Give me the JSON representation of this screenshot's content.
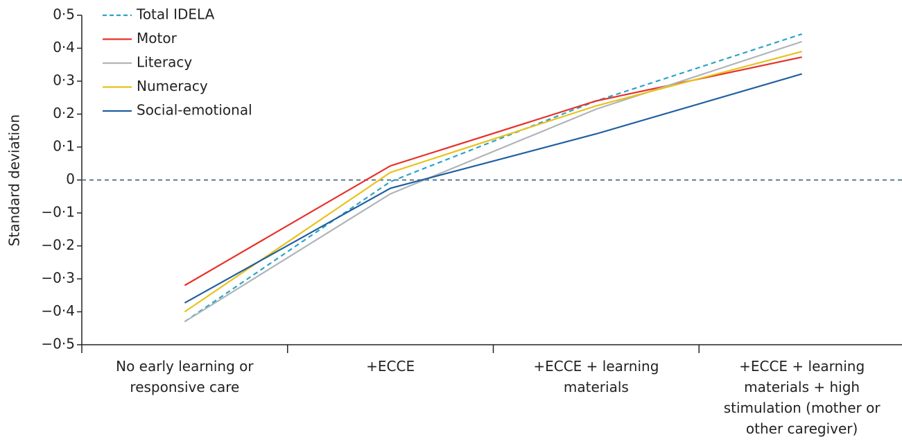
{
  "chart_data": {
    "type": "line",
    "y_label": "Standard deviation",
    "categories": [
      "No early learning or responsive care",
      "+ECCE",
      "+ECCE + learning materials",
      "+ECCE + learning materials + high stimulation (mother or other caregiver)"
    ],
    "series": [
      {
        "name": "Total IDELA",
        "color": "#2aa3c9",
        "dashed": true,
        "values": [
          -0.43,
          -0.005,
          0.24,
          0.443
        ]
      },
      {
        "name": "Motor",
        "color": "#e8302a",
        "dashed": false,
        "values": [
          -0.32,
          0.043,
          0.24,
          0.373
        ]
      },
      {
        "name": "Literacy",
        "color": "#b0b4b8",
        "dashed": false,
        "values": [
          -0.43,
          -0.042,
          0.215,
          0.42
        ]
      },
      {
        "name": "Numeracy",
        "color": "#e8c21a",
        "dashed": false,
        "values": [
          -0.4,
          0.023,
          0.225,
          0.39
        ]
      },
      {
        "name": "Social-emotional",
        "color": "#1f5fa0",
        "dashed": false,
        "values": [
          -0.373,
          -0.025,
          0.14,
          0.322
        ]
      }
    ],
    "ylim": [
      -0.5,
      0.5
    ],
    "yticks": [
      {
        "value": -0.5,
        "label": "−0·5"
      },
      {
        "value": -0.4,
        "label": "−0·4"
      },
      {
        "value": -0.3,
        "label": "−0·3"
      },
      {
        "value": -0.2,
        "label": "−0·2"
      },
      {
        "value": -0.1,
        "label": "−0·1"
      },
      0,
      {
        "value": 0.1,
        "label": "0·1"
      },
      {
        "value": 0.2,
        "label": "0·2"
      },
      {
        "value": 0.3,
        "label": "0·3"
      },
      {
        "value": 0.4,
        "label": "0·4"
      },
      {
        "value": 0.5,
        "label": "0·5"
      }
    ],
    "reference_line": 0,
    "legend": "top-left"
  }
}
